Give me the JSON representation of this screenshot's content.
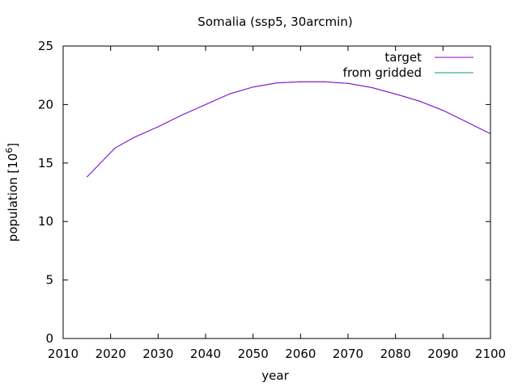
{
  "chart_data": {
    "type": "line",
    "title": "Somalia (ssp5, 30arcmin)",
    "xlabel": "year",
    "ylabel_main": "population [10",
    "ylabel_sup": "6",
    "ylabel_close": "]",
    "xlim": [
      2010,
      2100
    ],
    "ylim": [
      0,
      25
    ],
    "xticks": [
      2010,
      2020,
      2030,
      2040,
      2050,
      2060,
      2070,
      2080,
      2090,
      2100
    ],
    "yticks": [
      0,
      5,
      10,
      15,
      20,
      25
    ],
    "grid": false,
    "legend_position": "top-right",
    "series": [
      {
        "name": "target",
        "color": "#9400d3",
        "x": [
          2015,
          2020,
          2021,
          2025,
          2030,
          2035,
          2040,
          2045,
          2050,
          2055,
          2060,
          2065,
          2070,
          2075,
          2080,
          2085,
          2090,
          2095,
          2100
        ],
        "y": [
          13.8,
          15.9,
          16.3,
          17.2,
          18.1,
          19.1,
          20.0,
          20.9,
          21.5,
          21.85,
          21.95,
          21.95,
          21.8,
          21.45,
          20.9,
          20.3,
          19.5,
          18.5,
          17.5
        ]
      },
      {
        "name": "from gridded",
        "color": "#009e73",
        "x": [
          2015,
          2020,
          2021,
          2025,
          2030,
          2035,
          2040,
          2045,
          2050,
          2055,
          2060,
          2065,
          2070,
          2075,
          2080,
          2085,
          2090,
          2095,
          2100
        ],
        "y": [
          13.8,
          15.9,
          16.3,
          17.2,
          18.1,
          19.1,
          20.0,
          20.9,
          21.5,
          21.85,
          21.95,
          21.95,
          21.8,
          21.45,
          20.9,
          20.3,
          19.5,
          18.5,
          17.5
        ]
      }
    ]
  }
}
